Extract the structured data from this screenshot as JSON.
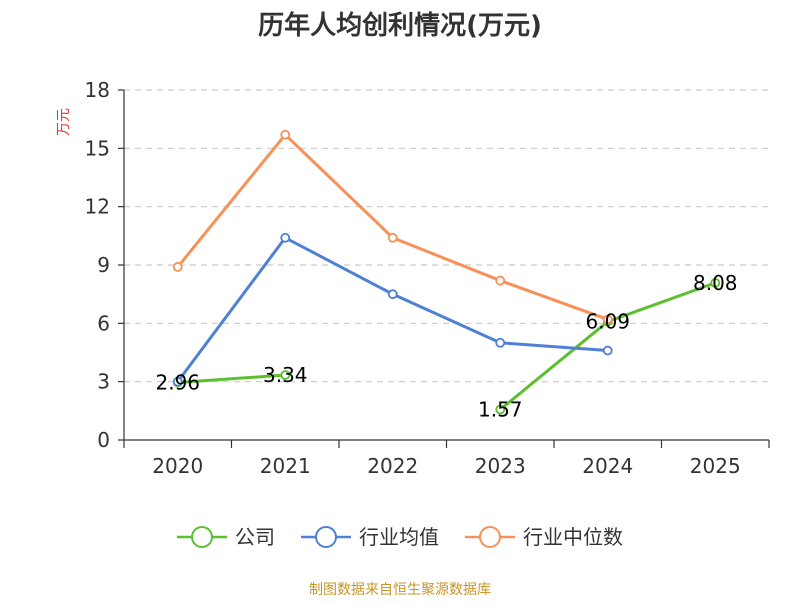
{
  "chart_data": {
    "type": "line",
    "title": "历年人均创利情况(万元)",
    "ylabel": "万元",
    "xlabel": "",
    "categories": [
      "2020",
      "2021",
      "2022",
      "2023",
      "2024",
      "2025"
    ],
    "ylim": [
      0,
      18
    ],
    "yticks": [
      0,
      3,
      6,
      9,
      12,
      15,
      18
    ],
    "grid": true,
    "legend_position": "bottom",
    "series": [
      {
        "name": "公司",
        "color": "#5cc02e",
        "values": [
          2.96,
          3.34,
          null,
          1.57,
          6.09,
          8.08
        ],
        "labels": [
          "2.96",
          "3.34",
          "",
          "1.57",
          "6.09",
          "8.08"
        ]
      },
      {
        "name": "行业均值",
        "color": "#4f80d6",
        "values": [
          3.0,
          10.4,
          7.5,
          5.0,
          4.6,
          null
        ],
        "labels": []
      },
      {
        "name": "行业中位数",
        "color": "#f79157",
        "values": [
          8.9,
          15.7,
          10.4,
          8.2,
          6.2,
          null
        ],
        "labels": []
      }
    ]
  },
  "footer": {
    "source": "制图数据来自恒生聚源数据库"
  }
}
